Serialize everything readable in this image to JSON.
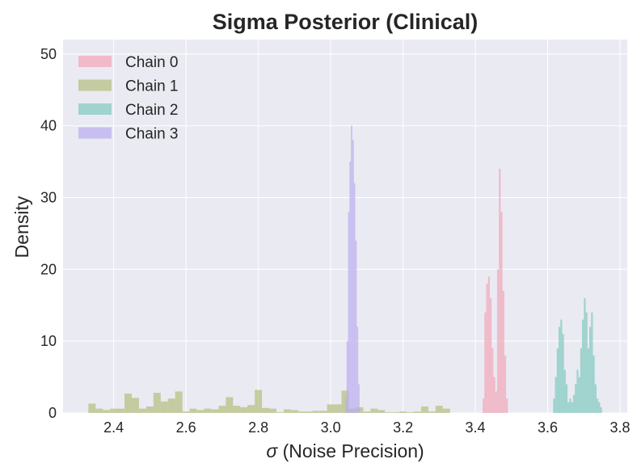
{
  "chart_data": {
    "type": "histogram",
    "title": "Sigma Posterior (Clinical)",
    "xlabel_symbol": "σ",
    "xlabel_text": " (Noise Precision)",
    "ylabel": "Density",
    "xlim": [
      2.26,
      3.82
    ],
    "ylim": [
      0,
      52
    ],
    "xticks": [
      2.4,
      2.6,
      2.8,
      3.0,
      3.2,
      3.4,
      3.6,
      3.8
    ],
    "xtick_labels": [
      "2.4",
      "2.6",
      "2.8",
      "3.0",
      "3.2",
      "3.4",
      "3.6",
      "3.8"
    ],
    "yticks": [
      0,
      10,
      20,
      30,
      40,
      50
    ],
    "ytick_labels": [
      "0",
      "10",
      "20",
      "30",
      "40",
      "50"
    ],
    "grid": true,
    "legend_position": "upper-left",
    "series": [
      {
        "name": "Chain 0",
        "color": "#f2a5b8",
        "bins": [
          [
            3.42,
            3.425,
            2
          ],
          [
            3.425,
            3.43,
            14
          ],
          [
            3.43,
            3.435,
            18
          ],
          [
            3.435,
            3.44,
            19
          ],
          [
            3.44,
            3.445,
            16
          ],
          [
            3.445,
            3.45,
            9
          ],
          [
            3.45,
            3.455,
            5
          ],
          [
            3.455,
            3.46,
            3
          ],
          [
            3.46,
            3.465,
            20
          ],
          [
            3.465,
            3.47,
            34
          ],
          [
            3.47,
            3.475,
            28
          ],
          [
            3.475,
            3.48,
            17
          ],
          [
            3.48,
            3.485,
            8
          ],
          [
            3.485,
            3.49,
            2
          ]
        ]
      },
      {
        "name": "Chain 1",
        "color": "#b3bd7e",
        "bins": [
          [
            2.33,
            2.35,
            1.3
          ],
          [
            2.35,
            2.37,
            0.6
          ],
          [
            2.37,
            2.39,
            0.4
          ],
          [
            2.39,
            2.41,
            0.6
          ],
          [
            2.41,
            2.43,
            0.6
          ],
          [
            2.43,
            2.45,
            2.7
          ],
          [
            2.45,
            2.47,
            2.1
          ],
          [
            2.47,
            2.49,
            0.6
          ],
          [
            2.49,
            2.51,
            0.9
          ],
          [
            2.51,
            2.53,
            2.8
          ],
          [
            2.53,
            2.55,
            1.6
          ],
          [
            2.55,
            2.57,
            2.0
          ],
          [
            2.57,
            2.59,
            3.0
          ],
          [
            2.59,
            2.61,
            0.2
          ],
          [
            2.61,
            2.63,
            0.6
          ],
          [
            2.63,
            2.65,
            0.4
          ],
          [
            2.65,
            2.67,
            0.6
          ],
          [
            2.67,
            2.69,
            0.5
          ],
          [
            2.69,
            2.71,
            1.0
          ],
          [
            2.71,
            2.73,
            2.2
          ],
          [
            2.73,
            2.75,
            1.0
          ],
          [
            2.75,
            2.77,
            0.8
          ],
          [
            2.77,
            2.79,
            1.1
          ],
          [
            2.79,
            2.81,
            3.2
          ],
          [
            2.81,
            2.83,
            0.7
          ],
          [
            2.83,
            2.85,
            0.6
          ],
          [
            2.85,
            2.87,
            0.1
          ],
          [
            2.87,
            2.89,
            0.5
          ],
          [
            2.89,
            2.91,
            0.4
          ],
          [
            2.91,
            2.93,
            0.2
          ],
          [
            2.93,
            2.95,
            0.2
          ],
          [
            2.95,
            2.97,
            0.3
          ],
          [
            2.97,
            2.99,
            0.3
          ],
          [
            2.99,
            3.01,
            1.2
          ],
          [
            3.01,
            3.03,
            1.2
          ],
          [
            3.03,
            3.05,
            3.1
          ],
          [
            3.05,
            3.07,
            0.6
          ],
          [
            3.07,
            3.09,
            0.8
          ],
          [
            3.09,
            3.11,
            0.2
          ],
          [
            3.11,
            3.13,
            0.6
          ],
          [
            3.13,
            3.15,
            0.4
          ],
          [
            3.15,
            3.17,
            0.1
          ],
          [
            3.17,
            3.19,
            0.1
          ],
          [
            3.19,
            3.21,
            0.2
          ],
          [
            3.21,
            3.23,
            0.1
          ],
          [
            3.23,
            3.25,
            0.2
          ],
          [
            3.25,
            3.27,
            0.9
          ],
          [
            3.27,
            3.29,
            0.2
          ],
          [
            3.29,
            3.31,
            1.0
          ],
          [
            3.31,
            3.33,
            0.6
          ]
        ]
      },
      {
        "name": "Chain 2",
        "color": "#7fc9bf",
        "bins": [
          [
            3.615,
            3.62,
            2
          ],
          [
            3.62,
            3.625,
            5
          ],
          [
            3.625,
            3.63,
            9
          ],
          [
            3.63,
            3.635,
            12
          ],
          [
            3.635,
            3.64,
            13
          ],
          [
            3.64,
            3.645,
            11
          ],
          [
            3.645,
            3.65,
            6
          ],
          [
            3.65,
            3.655,
            4
          ],
          [
            3.655,
            3.66,
            1.5
          ],
          [
            3.66,
            3.665,
            2
          ],
          [
            3.665,
            3.67,
            1.5
          ],
          [
            3.67,
            3.675,
            2.5
          ],
          [
            3.675,
            3.68,
            4
          ],
          [
            3.68,
            3.685,
            6
          ],
          [
            3.685,
            3.69,
            5
          ],
          [
            3.69,
            3.695,
            9
          ],
          [
            3.695,
            3.7,
            13
          ],
          [
            3.7,
            3.705,
            16
          ],
          [
            3.705,
            3.71,
            14
          ],
          [
            3.71,
            3.715,
            9
          ],
          [
            3.715,
            3.72,
            12
          ],
          [
            3.72,
            3.725,
            14
          ],
          [
            3.725,
            3.73,
            8
          ],
          [
            3.73,
            3.735,
            4
          ],
          [
            3.735,
            3.74,
            2
          ],
          [
            3.74,
            3.745,
            1.5
          ],
          [
            3.745,
            3.75,
            0.8
          ]
        ]
      },
      {
        "name": "Chain 3",
        "color": "#b9adef",
        "bins": [
          [
            3.04,
            3.044,
            2
          ],
          [
            3.044,
            3.048,
            10
          ],
          [
            3.048,
            3.052,
            28
          ],
          [
            3.052,
            3.056,
            35
          ],
          [
            3.056,
            3.06,
            40
          ],
          [
            3.06,
            3.064,
            38
          ],
          [
            3.064,
            3.068,
            32
          ],
          [
            3.068,
            3.072,
            24
          ],
          [
            3.072,
            3.076,
            12
          ],
          [
            3.076,
            3.08,
            4
          ]
        ]
      }
    ]
  }
}
